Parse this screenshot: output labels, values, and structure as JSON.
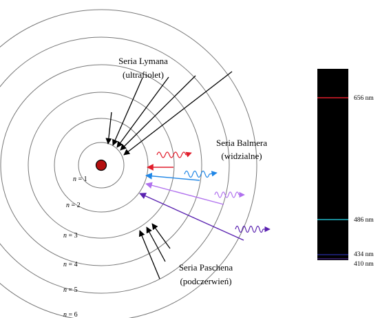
{
  "series": {
    "lyman": {
      "title": "Seria Lymana",
      "subtitle": "(ultrafiolet)"
    },
    "balmer": {
      "title": "Seria Balmera",
      "subtitle": "(widzialne)"
    },
    "paschen": {
      "title": "Seria Paschena",
      "subtitle": "(podczerwień)"
    }
  },
  "levels": [
    {
      "var": "n",
      "eq": " = 1"
    },
    {
      "var": "n",
      "eq": " = 2"
    },
    {
      "var": "n",
      "eq": " = 3"
    },
    {
      "var": "n",
      "eq": " = 4"
    },
    {
      "var": "n",
      "eq": " = 5"
    },
    {
      "var": "n",
      "eq": " = 6"
    }
  ],
  "spectrum": {
    "lines": [
      {
        "label": "656 nm",
        "color": "#e11d2b"
      },
      {
        "label": "486 nm",
        "color": "#22b8c8"
      },
      {
        "label": "434 nm",
        "color": "#2b2fa8"
      },
      {
        "label": "410 nm",
        "color": "#4a2a8c"
      }
    ]
  },
  "colors": {
    "nucleus": "#b40f0f",
    "balmer_red": "#e11d2b",
    "balmer_blue": "#1f86e6",
    "balmer_violet": "#b070ee",
    "balmer_indigo": "#5a22b0",
    "arrow": "#000000"
  }
}
